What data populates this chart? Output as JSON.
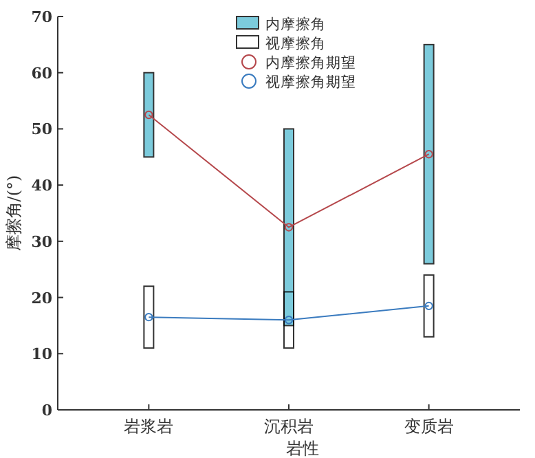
{
  "chart_data": {
    "type": "bar",
    "xlabel": "岩性",
    "ylabel": "摩擦角/(°)",
    "categories": [
      "岩浆岩",
      "沉积岩",
      "变质岩"
    ],
    "ylim": [
      0,
      70
    ],
    "yticks": [
      0,
      10,
      20,
      30,
      40,
      50,
      60,
      70
    ],
    "legend": "top",
    "marker": "circle",
    "grid": false,
    "series": [
      {
        "name": "视摩擦角",
        "color": "#ffffff",
        "base": [
          11,
          11,
          13
        ],
        "values": [
          11,
          10,
          11
        ]
      },
      {
        "name": "内摩擦角",
        "color": "#7ccbdc",
        "base": [
          45,
          15,
          26
        ],
        "values": [
          15,
          35,
          39
        ]
      },
      {
        "name": "内摩擦角期望",
        "type": "line",
        "color": "#b5474b",
        "values": [
          52.5,
          32.5,
          45.5
        ]
      },
      {
        "name": "视摩擦角期望",
        "type": "line",
        "color": "#3a7bbf",
        "values": [
          16.5,
          16,
          18.5
        ]
      }
    ]
  }
}
